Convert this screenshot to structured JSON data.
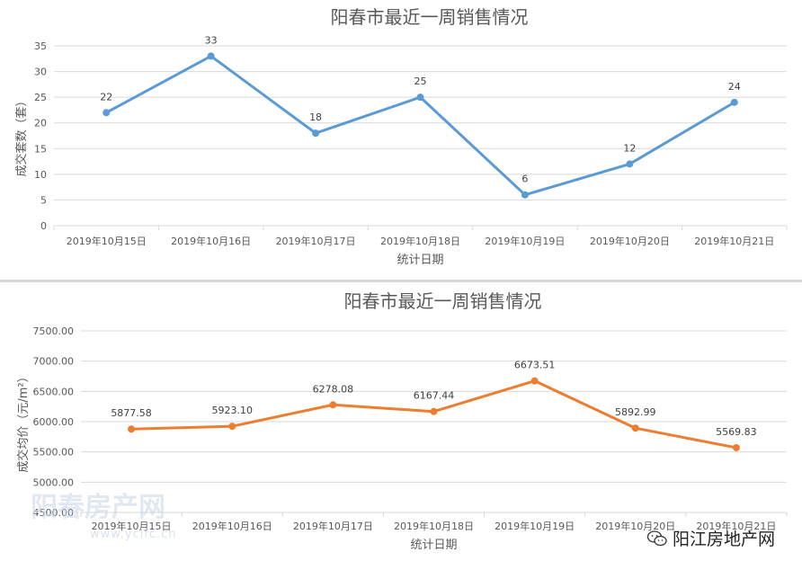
{
  "chart_data": [
    {
      "type": "line",
      "title": "阳春市最近一周销售情况",
      "xlabel": "统计日期",
      "ylabel": "成交套数（套）",
      "categories": [
        "2019年10月15日",
        "2019年10月16日",
        "2019年10月17日",
        "2019年10月18日",
        "2019年10月19日",
        "2019年10月20日",
        "2019年10月21日"
      ],
      "values": [
        22,
        33,
        18,
        25,
        6,
        12,
        24
      ],
      "data_labels": [
        "22",
        "33",
        "18",
        "25",
        "6",
        "12",
        "24"
      ],
      "ylim": [
        0,
        35
      ],
      "yticks": [
        0,
        5,
        10,
        15,
        20,
        25,
        30,
        35
      ],
      "ytick_labels": [
        "0",
        "5",
        "10",
        "15",
        "20",
        "25",
        "30",
        "35"
      ],
      "grid": true,
      "color": "#5b9bd5",
      "line_marker": "circle"
    },
    {
      "type": "line",
      "title": "阳春市最近一周销售情况",
      "xlabel": "统计日期",
      "ylabel": "成交均价（元/m²）",
      "categories": [
        "2019年10月15日",
        "2019年10月16日",
        "2019年10月17日",
        "2019年10月18日",
        "2019年10月19日",
        "2019年10月20日",
        "2019年10月21日"
      ],
      "values": [
        5877.58,
        5923.1,
        6278.08,
        6167.44,
        6673.51,
        5892.99,
        5569.83
      ],
      "data_labels": [
        "5877.58",
        "5923.10",
        "6278.08",
        "6167.44",
        "6673.51",
        "5892.99",
        "5569.83"
      ],
      "ylim": [
        4500,
        7500
      ],
      "yticks": [
        4500,
        5000,
        5500,
        6000,
        6500,
        7000,
        7500
      ],
      "ytick_labels": [
        "4500.00",
        "5000.00",
        "5500.00",
        "6000.00",
        "6500.00",
        "7000.00",
        "7500.00"
      ],
      "grid": true,
      "color": "#ed7d31",
      "line_marker": "circle"
    }
  ],
  "watermark": {
    "text": "阳春房产网",
    "url": "www.yclfc.cn"
  },
  "brand": {
    "text": "阳江房地产网",
    "icon": "wechat-icon"
  }
}
